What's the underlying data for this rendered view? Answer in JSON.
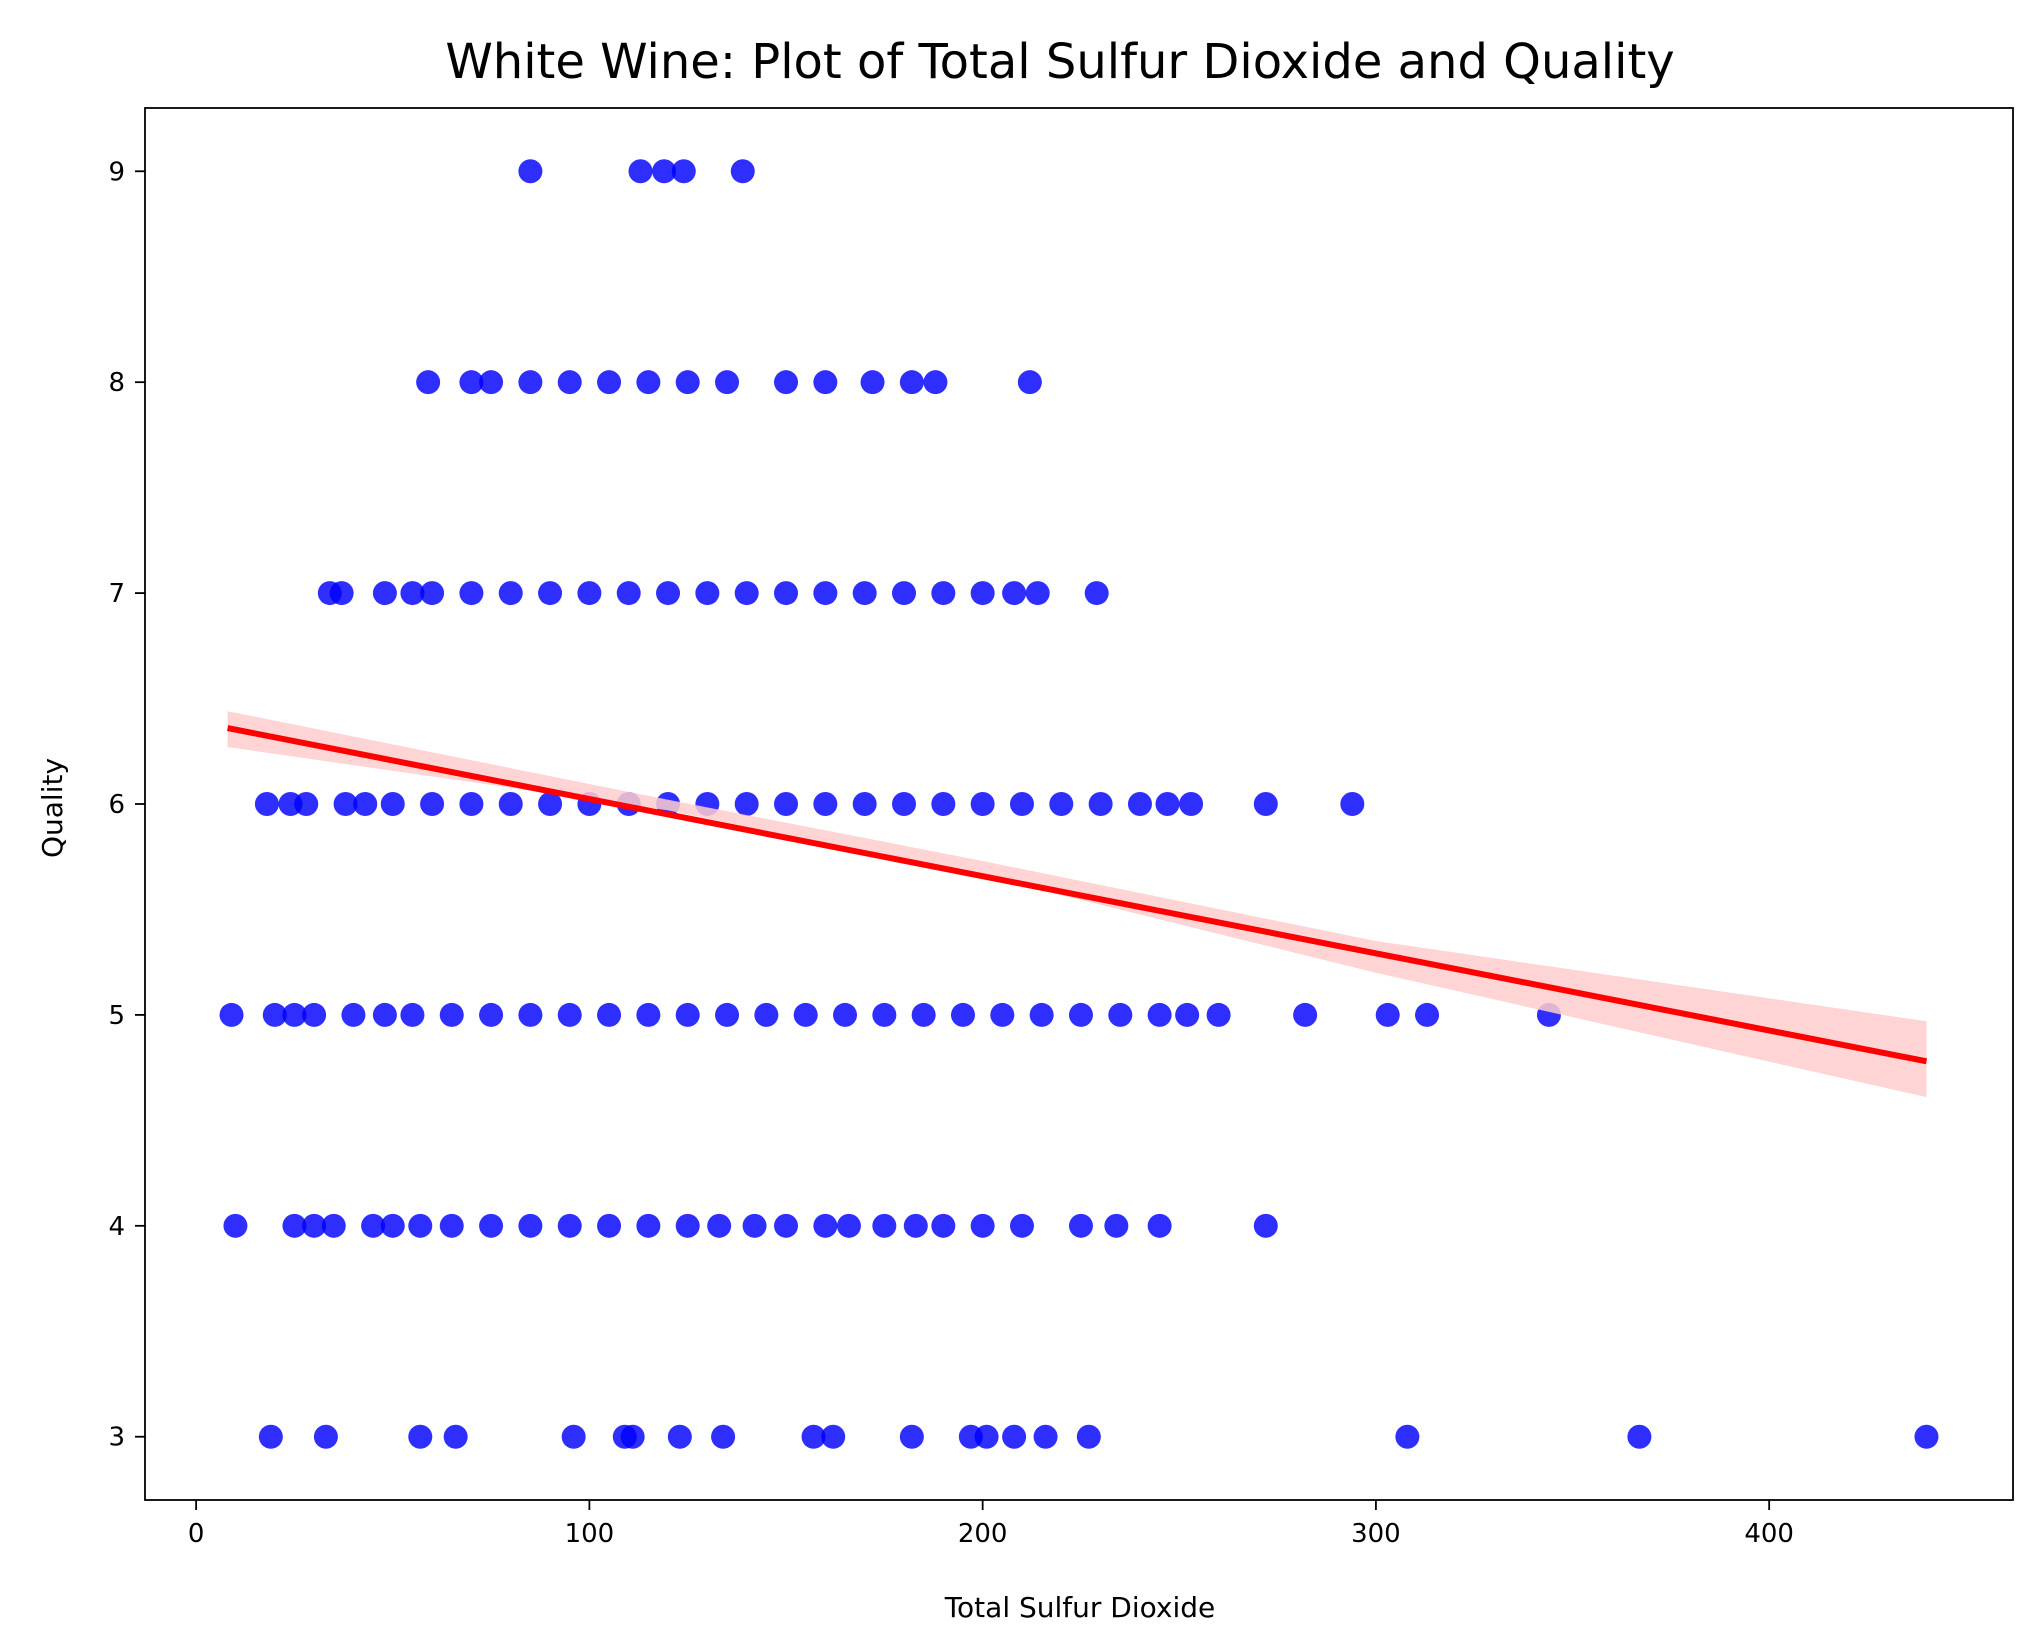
{
  "chart_data": {
    "type": "scatter",
    "title": "White Wine: Plot of Total Sulfur Dioxide and Quality",
    "xlabel": "Total Sulfur Dioxide",
    "ylabel": "Quality",
    "xlim": [
      -13,
      462
    ],
    "ylim": [
      2.7,
      9.3
    ],
    "xticks": [
      0,
      100,
      200,
      300,
      400
    ],
    "yticks": [
      3,
      4,
      5,
      6,
      7,
      8,
      9
    ],
    "grid": false,
    "legend": "none",
    "colors": {
      "points": "#0000ff",
      "line": "#ff0000",
      "ci_band": "#ffcccc"
    },
    "series": [
      {
        "kind": "points",
        "points": [
          [
            85,
            9
          ],
          [
            113,
            9
          ],
          [
            119,
            9
          ],
          [
            124,
            9
          ],
          [
            139,
            9
          ],
          [
            59,
            8
          ],
          [
            70,
            8
          ],
          [
            75,
            8
          ],
          [
            85,
            8
          ],
          [
            95,
            8
          ],
          [
            105,
            8
          ],
          [
            115,
            8
          ],
          [
            125,
            8
          ],
          [
            135,
            8
          ],
          [
            150,
            8
          ],
          [
            160,
            8
          ],
          [
            172,
            8
          ],
          [
            182,
            8
          ],
          [
            188,
            8
          ],
          [
            212,
            8
          ],
          [
            34,
            7
          ],
          [
            37,
            7
          ],
          [
            48,
            7
          ],
          [
            55,
            7
          ],
          [
            60,
            7
          ],
          [
            70,
            7
          ],
          [
            80,
            7
          ],
          [
            90,
            7
          ],
          [
            100,
            7
          ],
          [
            110,
            7
          ],
          [
            120,
            7
          ],
          [
            130,
            7
          ],
          [
            140,
            7
          ],
          [
            150,
            7
          ],
          [
            160,
            7
          ],
          [
            170,
            7
          ],
          [
            180,
            7
          ],
          [
            190,
            7
          ],
          [
            200,
            7
          ],
          [
            208,
            7
          ],
          [
            214,
            7
          ],
          [
            229,
            7
          ],
          [
            18,
            6
          ],
          [
            24,
            6
          ],
          [
            28,
            6
          ],
          [
            38,
            6
          ],
          [
            43,
            6
          ],
          [
            50,
            6
          ],
          [
            60,
            6
          ],
          [
            70,
            6
          ],
          [
            80,
            6
          ],
          [
            90,
            6
          ],
          [
            100,
            6
          ],
          [
            110,
            6
          ],
          [
            120,
            6
          ],
          [
            130,
            6
          ],
          [
            140,
            6
          ],
          [
            150,
            6
          ],
          [
            160,
            6
          ],
          [
            170,
            6
          ],
          [
            180,
            6
          ],
          [
            190,
            6
          ],
          [
            200,
            6
          ],
          [
            210,
            6
          ],
          [
            220,
            6
          ],
          [
            230,
            6
          ],
          [
            240,
            6
          ],
          [
            247,
            6
          ],
          [
            253,
            6
          ],
          [
            272,
            6
          ],
          [
            294,
            6
          ],
          [
            9,
            5
          ],
          [
            20,
            5
          ],
          [
            25,
            5
          ],
          [
            30,
            5
          ],
          [
            40,
            5
          ],
          [
            48,
            5
          ],
          [
            55,
            5
          ],
          [
            65,
            5
          ],
          [
            75,
            5
          ],
          [
            85,
            5
          ],
          [
            95,
            5
          ],
          [
            105,
            5
          ],
          [
            115,
            5
          ],
          [
            125,
            5
          ],
          [
            135,
            5
          ],
          [
            145,
            5
          ],
          [
            155,
            5
          ],
          [
            165,
            5
          ],
          [
            175,
            5
          ],
          [
            185,
            5
          ],
          [
            195,
            5
          ],
          [
            205,
            5
          ],
          [
            215,
            5
          ],
          [
            225,
            5
          ],
          [
            235,
            5
          ],
          [
            245,
            5
          ],
          [
            252,
            5
          ],
          [
            260,
            5
          ],
          [
            282,
            5
          ],
          [
            303,
            5
          ],
          [
            313,
            5
          ],
          [
            344,
            5
          ],
          [
            10,
            4
          ],
          [
            25,
            4
          ],
          [
            30,
            4
          ],
          [
            35,
            4
          ],
          [
            45,
            4
          ],
          [
            50,
            4
          ],
          [
            57,
            4
          ],
          [
            65,
            4
          ],
          [
            75,
            4
          ],
          [
            85,
            4
          ],
          [
            95,
            4
          ],
          [
            105,
            4
          ],
          [
            115,
            4
          ],
          [
            125,
            4
          ],
          [
            133,
            4
          ],
          [
            142,
            4
          ],
          [
            150,
            4
          ],
          [
            160,
            4
          ],
          [
            166,
            4
          ],
          [
            175,
            4
          ],
          [
            183,
            4
          ],
          [
            190,
            4
          ],
          [
            200,
            4
          ],
          [
            210,
            4
          ],
          [
            225,
            4
          ],
          [
            234,
            4
          ],
          [
            245,
            4
          ],
          [
            272,
            4
          ],
          [
            19,
            3
          ],
          [
            33,
            3
          ],
          [
            57,
            3
          ],
          [
            66,
            3
          ],
          [
            96,
            3
          ],
          [
            109,
            3
          ],
          [
            111,
            3
          ],
          [
            123,
            3
          ],
          [
            134,
            3
          ],
          [
            157,
            3
          ],
          [
            162,
            3
          ],
          [
            182,
            3
          ],
          [
            197,
            3
          ],
          [
            201,
            3
          ],
          [
            208,
            3
          ],
          [
            216,
            3
          ],
          [
            227,
            3
          ],
          [
            308,
            3
          ],
          [
            367,
            3
          ],
          [
            440,
            3
          ]
        ]
      },
      {
        "kind": "regression",
        "line": [
          [
            8,
            6.36
          ],
          [
            440,
            4.78
          ]
        ],
        "ci_upper": [
          [
            8,
            6.44
          ],
          [
            120,
            6.02
          ],
          [
            200,
            5.73
          ],
          [
            300,
            5.35
          ],
          [
            440,
            4.97
          ]
        ],
        "ci_lower": [
          [
            8,
            6.27
          ],
          [
            120,
            5.97
          ],
          [
            200,
            5.66
          ],
          [
            300,
            5.2
          ],
          [
            440,
            4.61
          ]
        ]
      }
    ]
  }
}
